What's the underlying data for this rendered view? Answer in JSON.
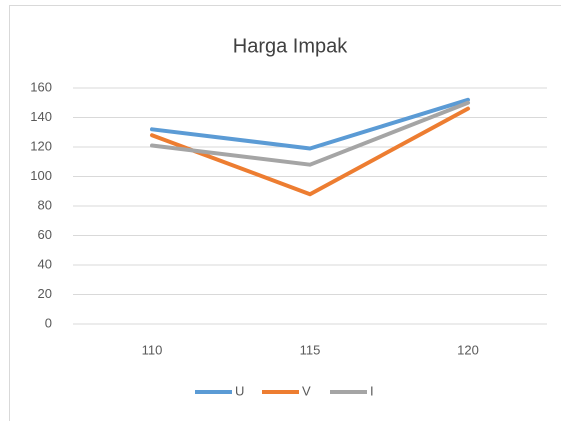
{
  "chart_data": {
    "type": "line",
    "title": "Harga Impak",
    "categories": [
      "110",
      "115",
      "120"
    ],
    "series": [
      {
        "name": "U",
        "color": "#5b9bd5",
        "values": [
          132,
          119,
          152
        ]
      },
      {
        "name": "V",
        "color": "#ed7d31",
        "values": [
          128,
          88,
          146
        ]
      },
      {
        "name": "I",
        "color": "#a5a5a5",
        "values": [
          121,
          108,
          150
        ]
      }
    ],
    "ylim": [
      0,
      160
    ],
    "yticks": [
      0,
      20,
      40,
      60,
      80,
      100,
      120,
      140,
      160
    ],
    "grid": true,
    "legend": "bottom"
  }
}
